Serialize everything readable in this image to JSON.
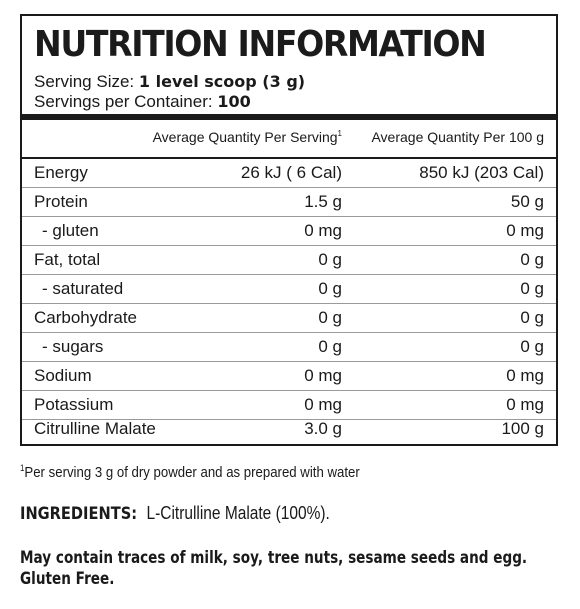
{
  "panel": {
    "title": "NUTRITION INFORMATION",
    "serving_size_label": "Serving Size:",
    "serving_size_value": "1 level scoop (3 g)",
    "servings_per_container_label": "Servings per Container:",
    "servings_per_container_value": "100",
    "col_per_serving": "Average Quantity Per Serving",
    "col_per_serving_marker": "1",
    "col_per_100g": "Average Quantity Per 100 g",
    "rows": [
      {
        "name": "Energy",
        "per_serving": "26 kJ ( 6 Cal)",
        "per_100g": "850 kJ (203 Cal)"
      },
      {
        "name": "Protein",
        "per_serving": "1.5 g",
        "per_100g": "50 g"
      },
      {
        "name": "- gluten",
        "per_serving": "0 mg",
        "per_100g": "0 mg"
      },
      {
        "name": "Fat, total",
        "per_serving": "0 g",
        "per_100g": "0 g"
      },
      {
        "name": "- saturated",
        "per_serving": "0 g",
        "per_100g": "0 g"
      },
      {
        "name": "Carbohydrate",
        "per_serving": "0 g",
        "per_100g": "0 g"
      },
      {
        "name": "- sugars",
        "per_serving": "0 g",
        "per_100g": "0 g"
      },
      {
        "name": "Sodium",
        "per_serving": "0 mg",
        "per_100g": "0 mg"
      },
      {
        "name": "Potassium",
        "per_serving": "0 mg",
        "per_100g": "0 mg"
      },
      {
        "name": "Citrulline Malate",
        "per_serving": "3.0 g",
        "per_100g": "100 g"
      }
    ]
  },
  "footnote": {
    "marker": "1",
    "text": "Per serving 3 g of dry powder and as prepared with water"
  },
  "ingredients": {
    "label": "INGREDIENTS:",
    "text": "L-Citrulline Malate (100%)."
  },
  "allergen": {
    "line1": "May contain traces of milk, soy, tree nuts, sesame seeds and egg.",
    "line2": "Gluten Free."
  }
}
